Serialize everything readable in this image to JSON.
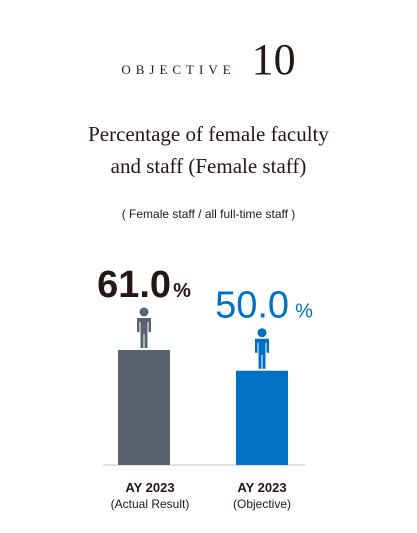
{
  "objective": {
    "word": "OBJECTIVE",
    "number": "10"
  },
  "title_line1": "Percentage of female faculty",
  "title_line2": "and staff (Female staff)",
  "subtitle": "( Female staff / all full-time staff )",
  "chart_data": {
    "type": "bar",
    "categories": [
      {
        "line1": "AY 2023",
        "line2": "(Actual Result)"
      },
      {
        "line1": "AY 2023",
        "line2": "(Objective)"
      }
    ],
    "values": [
      61.0,
      50.0
    ],
    "value_labels": [
      "61.0",
      "50.0"
    ],
    "unit": "%",
    "colors": [
      "#5a6470",
      "#0071c5"
    ],
    "label_colors": [
      "#231815",
      "#0071c5"
    ],
    "icon": "person-icon",
    "ylim": [
      0,
      100
    ]
  }
}
